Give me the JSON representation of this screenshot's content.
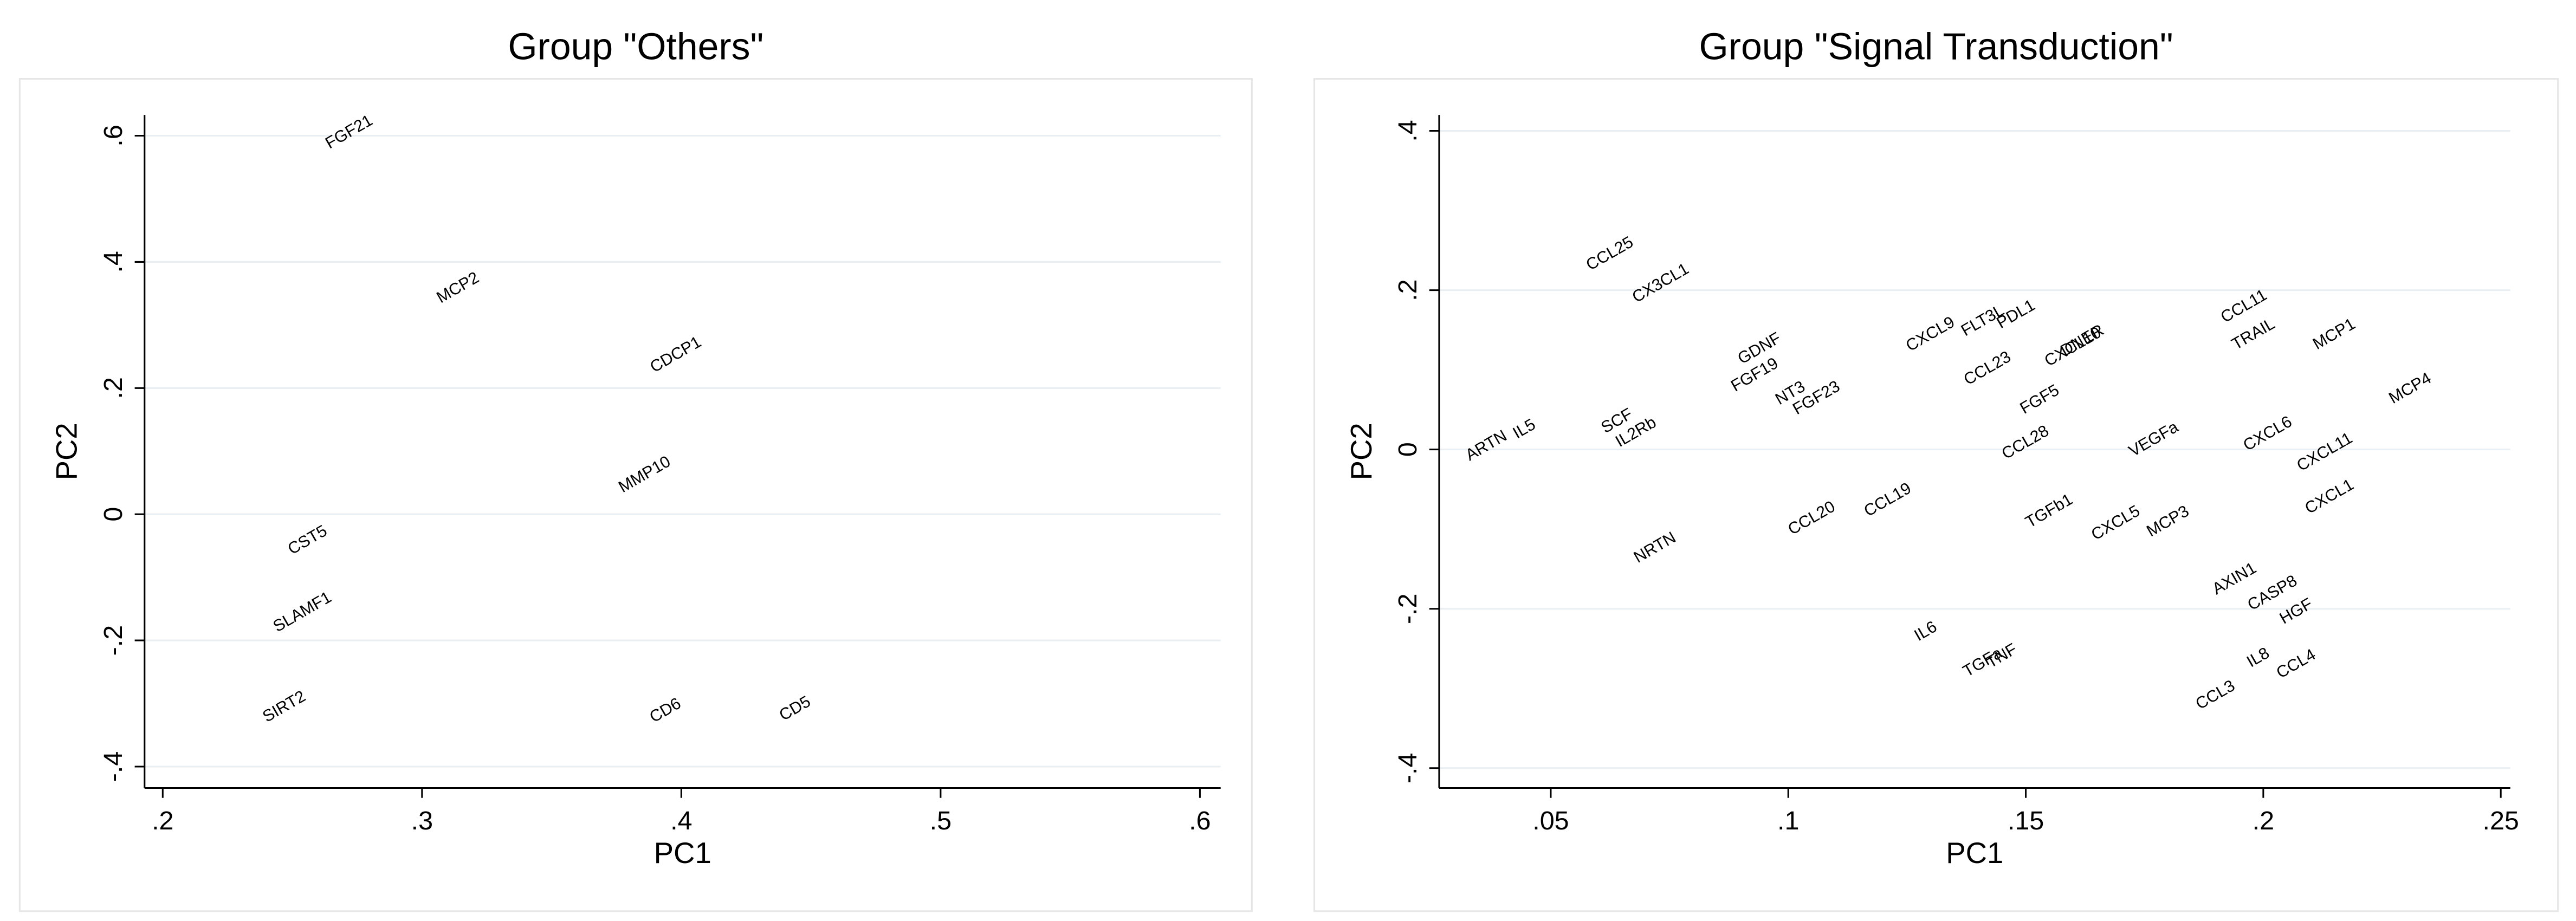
{
  "chart_data": [
    {
      "type": "scatter",
      "title": "Group \"Others\"",
      "x_label": "PC1",
      "y_label": "PC2",
      "grid": true,
      "xlim": [
        0.193,
        0.608
      ],
      "ylim": [
        -0.434,
        0.633
      ],
      "xticks": [
        {
          "value": 0.2,
          "label": ".2"
        },
        {
          "value": 0.3,
          "label": ".3"
        },
        {
          "value": 0.4,
          "label": ".4"
        },
        {
          "value": 0.5,
          "label": ".5"
        },
        {
          "value": 0.6,
          "label": ".6"
        }
      ],
      "yticks": [
        {
          "value": -0.4,
          "label": "-.4"
        },
        {
          "value": -0.2,
          "label": "-.2"
        },
        0,
        {
          "value": 0.2,
          "label": ".2"
        },
        {
          "value": 0.4,
          "label": ".4"
        },
        {
          "value": 0.6,
          "label": ".6"
        }
      ],
      "labels": [
        "FGF21",
        "MCP2",
        "CDCP1",
        "MMP10",
        "CST5",
        "SLAMF1",
        "SIRT2",
        "CD6",
        "CD5"
      ],
      "x": [
        0.272,
        0.314,
        0.398,
        0.386,
        0.256,
        0.254,
        0.247,
        0.394,
        0.444
      ],
      "y": [
        0.605,
        0.358,
        0.252,
        0.062,
        -0.042,
        -0.156,
        -0.306,
        -0.312,
        -0.309
      ]
    },
    {
      "type": "scatter",
      "title": "Group \"Signal Transduction\"",
      "x_label": "PC1",
      "y_label": "PC2",
      "grid": true,
      "xlim": [
        0.0265,
        0.252
      ],
      "ylim": [
        -0.425,
        0.42
      ],
      "xticks": [
        {
          "value": 0.05,
          "label": ".05"
        },
        {
          "value": 0.1,
          "label": ".1"
        },
        {
          "value": 0.15,
          "label": ".15"
        },
        {
          "value": 0.2,
          "label": ".2"
        },
        {
          "value": 0.25,
          "label": ".25"
        }
      ],
      "yticks": [
        {
          "value": -0.4,
          "label": "-.4"
        },
        {
          "value": -0.2,
          "label": "-.2"
        },
        0,
        {
          "value": 0.2,
          "label": ".2"
        },
        {
          "value": 0.4,
          "label": ".4"
        }
      ],
      "labels": [
        "CCL25",
        "CX3CL1",
        "CCL11",
        "TRAIL",
        "MCP1",
        "CXCL9",
        "FLT3L",
        "PDL1",
        "GDNF",
        "FGF19",
        "CCL23",
        "CXCL10",
        "DNER",
        "FGF5",
        "MCP4",
        "NT3",
        "FGF23",
        "SCF",
        "IL2Rb",
        "ARTN",
        "IL5",
        "CCL28",
        "VEGFa",
        "CXCL6",
        "CXCL11",
        "CXCL1",
        "CCL20",
        "CCL19",
        "TGFb1",
        "CXCL5",
        "MCP3",
        "NRTN",
        "AXIN1",
        "CASP8",
        "HGF",
        "IL6",
        "TGFa",
        "TNF",
        "CCL3",
        "IL8",
        "CCL4"
      ],
      "x": [
        0.0625,
        0.0732,
        0.196,
        0.198,
        0.215,
        0.13,
        0.141,
        0.148,
        0.094,
        0.093,
        0.142,
        0.16,
        0.162,
        0.153,
        0.231,
        0.1005,
        0.106,
        0.064,
        0.068,
        0.0365,
        0.0445,
        0.15,
        0.177,
        0.201,
        0.213,
        0.214,
        0.105,
        0.121,
        0.155,
        0.169,
        0.18,
        0.072,
        0.194,
        0.202,
        0.207,
        0.129,
        0.141,
        0.145,
        0.19,
        0.199,
        0.207
      ],
      "y": [
        0.245,
        0.208,
        0.179,
        0.144,
        0.144,
        0.144,
        0.161,
        0.169,
        0.126,
        0.093,
        0.101,
        0.128,
        0.136,
        0.062,
        0.076,
        0.07,
        0.064,
        0.035,
        0.021,
        0.004,
        0.025,
        0.008,
        0.012,
        0.019,
        -0.004,
        -0.06,
        -0.087,
        -0.064,
        -0.078,
        -0.093,
        -0.091,
        -0.124,
        -0.163,
        -0.181,
        -0.204,
        -0.229,
        -0.268,
        -0.26,
        -0.309,
        -0.262,
        -0.27
      ]
    }
  ]
}
